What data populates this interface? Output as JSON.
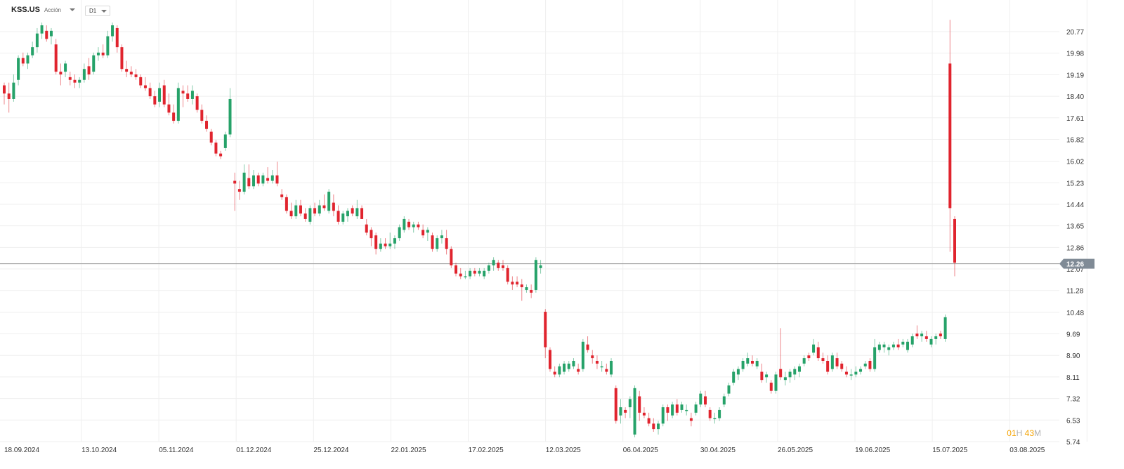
{
  "header": {
    "symbol": "KSS.US",
    "symbol_type": "Acción",
    "timeframe": "D1"
  },
  "countdown": {
    "hours": "01",
    "hours_unit": "H",
    "minutes": "43",
    "minutes_unit": "M"
  },
  "colors": {
    "up": "#26a269",
    "down": "#e0242e",
    "grid": "#efefef",
    "price_line": "#9a9a9a",
    "price_label_bg": "#808b96"
  },
  "chart_data": {
    "type": "candlestick",
    "symbol": "KSS.US",
    "timeframe": "D1",
    "grid": true,
    "y_range": [
      5.74,
      21.2
    ],
    "y_ticks": [
      5.74,
      6.53,
      7.32,
      8.11,
      8.9,
      9.69,
      10.48,
      11.28,
      12.07,
      12.86,
      13.65,
      14.44,
      15.23,
      16.02,
      16.82,
      17.61,
      18.4,
      19.19,
      19.98,
      20.77
    ],
    "y_tick_labels": [
      "5.74",
      "6.53",
      "7.32",
      "8.11",
      "8.90",
      "9.69",
      "10.48",
      "11.28",
      "12.07",
      "12.86",
      "13.65",
      "14.44",
      "15.23",
      "16.02",
      "16.82",
      "17.61",
      "18.40",
      "19.19",
      "19.98",
      "20.77"
    ],
    "x_date_ticks": [
      "18.09.2024",
      "13.10.2024",
      "05.11.2024",
      "01.12.2024",
      "25.12.2024",
      "22.01.2025",
      "17.02.2025",
      "12.03.2025",
      "06.04.2025",
      "30.04.2025",
      "26.05.2025",
      "19.06.2025",
      "15.07.2025",
      "03.08.2025"
    ],
    "current_price": 12.26,
    "current_price_label": "12.26",
    "candles": [
      [
        18.8,
        18.9,
        18.1,
        18.5
      ],
      [
        18.5,
        18.9,
        17.8,
        18.3
      ],
      [
        18.3,
        19.2,
        18.2,
        18.9
      ],
      [
        19.0,
        19.9,
        18.8,
        19.8
      ],
      [
        19.8,
        20.0,
        19.5,
        19.6
      ],
      [
        19.6,
        20.0,
        19.4,
        19.9
      ],
      [
        19.9,
        20.4,
        19.8,
        20.2
      ],
      [
        20.2,
        20.9,
        20.0,
        20.7
      ],
      [
        20.7,
        21.1,
        20.5,
        21.0
      ],
      [
        20.8,
        21.0,
        20.4,
        20.5
      ],
      [
        20.6,
        20.9,
        20.3,
        20.8
      ],
      [
        20.3,
        20.5,
        19.2,
        19.3
      ],
      [
        19.3,
        19.6,
        18.8,
        19.2
      ],
      [
        19.3,
        19.7,
        19.1,
        19.6
      ],
      [
        19.1,
        19.3,
        18.8,
        19.0
      ],
      [
        19.0,
        19.2,
        18.7,
        18.9
      ],
      [
        18.9,
        19.1,
        18.7,
        19.0
      ],
      [
        19.0,
        19.6,
        18.9,
        19.4
      ],
      [
        19.5,
        19.8,
        19.0,
        19.2
      ],
      [
        19.3,
        20.0,
        19.2,
        19.9
      ],
      [
        19.9,
        20.2,
        19.7,
        20.0
      ],
      [
        20.0,
        20.3,
        19.8,
        19.9
      ],
      [
        19.9,
        20.8,
        19.8,
        20.6
      ],
      [
        20.6,
        21.1,
        20.4,
        21.0
      ],
      [
        20.9,
        21.0,
        20.0,
        20.2
      ],
      [
        20.2,
        20.3,
        19.3,
        19.4
      ],
      [
        19.4,
        19.7,
        19.1,
        19.3
      ],
      [
        19.3,
        19.5,
        19.1,
        19.2
      ],
      [
        19.2,
        19.4,
        19.0,
        19.1
      ],
      [
        19.1,
        19.2,
        18.7,
        18.8
      ],
      [
        18.8,
        19.1,
        18.6,
        18.7
      ],
      [
        18.7,
        18.9,
        18.3,
        18.4
      ],
      [
        18.4,
        18.6,
        18.0,
        18.1
      ],
      [
        18.2,
        18.9,
        18.0,
        18.7
      ],
      [
        18.8,
        19.0,
        18.0,
        18.1
      ],
      [
        18.1,
        18.5,
        17.7,
        17.8
      ],
      [
        17.8,
        18.1,
        17.4,
        17.5
      ],
      [
        17.5,
        18.9,
        17.4,
        18.7
      ],
      [
        18.6,
        18.8,
        18.0,
        18.5
      ],
      [
        18.5,
        18.8,
        18.2,
        18.3
      ],
      [
        18.3,
        18.8,
        18.1,
        18.6
      ],
      [
        18.4,
        18.5,
        17.8,
        17.9
      ],
      [
        17.9,
        18.1,
        17.4,
        17.5
      ],
      [
        17.5,
        17.7,
        17.1,
        17.2
      ],
      [
        17.1,
        17.2,
        16.6,
        16.7
      ],
      [
        16.7,
        16.8,
        16.2,
        16.3
      ],
      [
        16.3,
        16.4,
        16.1,
        16.2
      ],
      [
        16.5,
        17.1,
        16.4,
        17.0
      ],
      [
        17.0,
        18.7,
        16.9,
        18.3
      ],
      [
        15.3,
        15.6,
        14.2,
        15.2
      ],
      [
        15.0,
        15.3,
        14.6,
        14.9
      ],
      [
        14.9,
        15.9,
        14.8,
        15.6
      ],
      [
        15.4,
        15.9,
        15.0,
        15.1
      ],
      [
        15.1,
        15.7,
        15.0,
        15.5
      ],
      [
        15.5,
        15.6,
        15.1,
        15.2
      ],
      [
        15.2,
        15.6,
        15.1,
        15.5
      ],
      [
        15.4,
        15.8,
        15.2,
        15.3
      ],
      [
        15.3,
        15.7,
        15.2,
        15.5
      ],
      [
        15.5,
        16.0,
        15.1,
        15.2
      ],
      [
        14.8,
        15.0,
        14.6,
        14.7
      ],
      [
        14.7,
        14.8,
        14.1,
        14.2
      ],
      [
        14.2,
        14.5,
        13.9,
        14.0
      ],
      [
        14.0,
        14.6,
        13.9,
        14.4
      ],
      [
        14.4,
        14.6,
        14.0,
        14.1
      ],
      [
        14.1,
        14.3,
        13.8,
        13.9
      ],
      [
        13.8,
        14.4,
        13.7,
        14.3
      ],
      [
        14.3,
        14.5,
        14.0,
        14.1
      ],
      [
        14.1,
        14.6,
        14.0,
        14.4
      ],
      [
        14.4,
        14.8,
        14.2,
        14.3
      ],
      [
        14.2,
        15.0,
        14.1,
        14.9
      ],
      [
        14.5,
        14.8,
        14.0,
        14.2
      ],
      [
        14.2,
        14.4,
        13.7,
        13.8
      ],
      [
        13.8,
        14.2,
        13.7,
        14.1
      ],
      [
        14.0,
        14.3,
        13.8,
        14.2
      ],
      [
        14.3,
        14.4,
        14.0,
        14.1
      ],
      [
        14.0,
        14.6,
        13.9,
        14.3
      ],
      [
        14.3,
        14.4,
        13.9,
        13.9
      ],
      [
        13.7,
        13.9,
        13.3,
        13.4
      ],
      [
        13.5,
        13.6,
        12.9,
        13.2
      ],
      [
        13.3,
        13.4,
        12.6,
        12.8
      ],
      [
        12.8,
        13.2,
        12.7,
        13.0
      ],
      [
        13.0,
        13.2,
        12.8,
        12.9
      ],
      [
        12.9,
        13.4,
        12.8,
        13.0
      ],
      [
        13.0,
        13.3,
        12.8,
        13.2
      ],
      [
        13.2,
        13.7,
        13.1,
        13.6
      ],
      [
        13.5,
        14.0,
        13.4,
        13.9
      ],
      [
        13.8,
        13.9,
        13.5,
        13.6
      ],
      [
        13.6,
        13.8,
        13.4,
        13.7
      ],
      [
        13.7,
        13.8,
        13.5,
        13.6
      ],
      [
        13.5,
        13.7,
        13.2,
        13.3
      ],
      [
        13.4,
        13.6,
        13.1,
        13.5
      ],
      [
        13.3,
        13.4,
        12.7,
        12.8
      ],
      [
        12.8,
        13.3,
        12.7,
        13.2
      ],
      [
        13.2,
        13.5,
        13.0,
        13.3
      ],
      [
        13.2,
        13.5,
        12.6,
        12.8
      ],
      [
        12.8,
        12.9,
        12.1,
        12.2
      ],
      [
        12.2,
        12.3,
        11.8,
        11.9
      ],
      [
        11.9,
        12.1,
        11.7,
        11.8
      ],
      [
        11.8,
        12.0,
        11.7,
        11.8
      ],
      [
        11.8,
        12.1,
        11.7,
        12.0
      ],
      [
        12.0,
        12.1,
        11.8,
        11.9
      ],
      [
        11.9,
        12.1,
        11.8,
        12.0
      ],
      [
        11.8,
        12.1,
        11.7,
        12.0
      ],
      [
        12.0,
        12.3,
        11.9,
        12.2
      ],
      [
        12.2,
        12.5,
        12.0,
        12.4
      ],
      [
        12.3,
        12.4,
        12.0,
        12.1
      ],
      [
        12.2,
        12.4,
        12.0,
        12.1
      ],
      [
        12.1,
        12.2,
        11.5,
        11.6
      ],
      [
        11.6,
        11.8,
        11.3,
        11.5
      ],
      [
        11.6,
        11.8,
        11.4,
        11.5
      ],
      [
        11.5,
        11.7,
        10.9,
        11.4
      ],
      [
        11.3,
        11.5,
        11.2,
        11.4
      ],
      [
        11.3,
        11.5,
        11.0,
        11.2
      ],
      [
        11.3,
        12.5,
        11.2,
        12.4
      ],
      [
        12.1,
        12.4,
        11.9,
        12.2
      ],
      [
        10.5,
        10.6,
        8.8,
        9.2
      ],
      [
        9.1,
        9.2,
        8.3,
        8.4
      ],
      [
        8.3,
        8.5,
        8.1,
        8.2
      ],
      [
        8.2,
        8.6,
        8.1,
        8.5
      ],
      [
        8.3,
        8.7,
        8.2,
        8.6
      ],
      [
        8.4,
        8.7,
        8.3,
        8.6
      ],
      [
        8.5,
        8.8,
        8.4,
        8.7
      ],
      [
        8.4,
        8.6,
        8.2,
        8.3
      ],
      [
        8.4,
        9.5,
        8.3,
        9.4
      ],
      [
        9.3,
        9.6,
        9.0,
        9.1
      ],
      [
        8.9,
        9.1,
        8.6,
        8.8
      ],
      [
        8.7,
        8.9,
        8.4,
        8.6
      ],
      [
        8.5,
        8.7,
        8.3,
        8.5
      ],
      [
        8.4,
        8.6,
        8.2,
        8.3
      ],
      [
        8.2,
        8.8,
        8.1,
        8.7
      ],
      [
        7.7,
        7.8,
        6.4,
        6.5
      ],
      [
        6.7,
        7.3,
        6.4,
        7.0
      ],
      [
        6.9,
        7.0,
        6.6,
        6.8
      ],
      [
        7.0,
        7.4,
        6.6,
        7.3
      ],
      [
        6.0,
        7.8,
        5.9,
        7.7
      ],
      [
        7.4,
        7.6,
        6.5,
        6.8
      ],
      [
        6.8,
        7.0,
        6.6,
        6.7
      ],
      [
        6.6,
        6.8,
        6.3,
        6.4
      ],
      [
        6.4,
        6.6,
        6.1,
        6.2
      ],
      [
        6.2,
        6.5,
        6.0,
        6.4
      ],
      [
        6.4,
        7.1,
        6.3,
        7.0
      ],
      [
        7.0,
        7.1,
        6.5,
        6.8
      ],
      [
        6.7,
        7.2,
        6.6,
        7.1
      ],
      [
        7.1,
        7.3,
        6.7,
        6.8
      ],
      [
        6.9,
        7.2,
        6.8,
        7.1
      ],
      [
        6.9,
        7.1,
        6.7,
        6.9
      ],
      [
        6.6,
        6.8,
        6.3,
        6.5
      ],
      [
        6.8,
        7.2,
        6.7,
        7.1
      ],
      [
        7.1,
        7.6,
        7.0,
        7.5
      ],
      [
        7.4,
        7.6,
        7.0,
        7.1
      ],
      [
        6.9,
        7.0,
        6.5,
        6.6
      ],
      [
        6.6,
        6.8,
        6.4,
        6.6
      ],
      [
        6.6,
        7.0,
        6.5,
        6.9
      ],
      [
        7.1,
        7.5,
        7.0,
        7.4
      ],
      [
        7.5,
        7.9,
        7.4,
        7.8
      ],
      [
        7.9,
        8.4,
        7.8,
        8.3
      ],
      [
        8.2,
        8.5,
        8.0,
        8.4
      ],
      [
        8.4,
        8.8,
        8.3,
        8.7
      ],
      [
        8.6,
        9.0,
        8.5,
        8.8
      ],
      [
        8.7,
        8.9,
        8.5,
        8.6
      ],
      [
        8.5,
        8.8,
        8.4,
        8.7
      ],
      [
        8.3,
        8.6,
        7.9,
        8.0
      ],
      [
        8.1,
        8.3,
        7.9,
        8.2
      ],
      [
        7.9,
        8.0,
        7.5,
        7.6
      ],
      [
        7.6,
        8.3,
        7.5,
        8.2
      ],
      [
        8.4,
        9.9,
        8.0,
        8.1
      ],
      [
        8.0,
        8.3,
        7.8,
        8.1
      ],
      [
        8.1,
        8.4,
        7.9,
        8.3
      ],
      [
        8.2,
        8.5,
        8.0,
        8.4
      ],
      [
        8.3,
        8.6,
        8.1,
        8.5
      ],
      [
        8.6,
        8.9,
        8.5,
        8.8
      ],
      [
        8.9,
        9.0,
        8.7,
        8.8
      ],
      [
        9.0,
        9.5,
        8.9,
        9.3
      ],
      [
        9.2,
        9.4,
        8.7,
        8.8
      ],
      [
        8.8,
        9.0,
        8.6,
        8.7
      ],
      [
        8.7,
        8.9,
        8.2,
        8.3
      ],
      [
        8.4,
        9.0,
        8.3,
        8.9
      ],
      [
        8.8,
        9.0,
        8.4,
        8.5
      ],
      [
        8.6,
        8.7,
        8.3,
        8.4
      ],
      [
        8.3,
        8.5,
        8.1,
        8.2
      ],
      [
        8.2,
        8.4,
        8.0,
        8.2
      ],
      [
        8.2,
        8.5,
        8.1,
        8.3
      ],
      [
        8.3,
        8.5,
        8.2,
        8.4
      ],
      [
        8.5,
        8.7,
        8.4,
        8.6
      ],
      [
        8.7,
        8.8,
        8.3,
        8.4
      ],
      [
        8.4,
        9.5,
        8.3,
        9.2
      ],
      [
        9.1,
        9.4,
        9.0,
        9.3
      ],
      [
        9.2,
        9.4,
        9.0,
        9.3
      ],
      [
        9.1,
        9.3,
        8.9,
        9.2
      ],
      [
        9.2,
        9.4,
        9.1,
        9.3
      ],
      [
        9.3,
        9.5,
        9.1,
        9.2
      ],
      [
        9.3,
        9.5,
        9.2,
        9.4
      ],
      [
        9.1,
        9.5,
        9.0,
        9.4
      ],
      [
        9.3,
        9.7,
        9.2,
        9.6
      ],
      [
        9.7,
        10.0,
        9.5,
        9.6
      ],
      [
        9.6,
        9.8,
        9.4,
        9.7
      ],
      [
        9.6,
        9.8,
        9.4,
        9.5
      ],
      [
        9.3,
        9.6,
        9.2,
        9.5
      ],
      [
        9.5,
        9.7,
        9.3,
        9.6
      ],
      [
        9.7,
        9.8,
        9.5,
        9.6
      ],
      [
        9.5,
        10.4,
        9.4,
        10.3
      ],
      [
        19.6,
        21.2,
        12.7,
        14.3
      ],
      [
        13.9,
        14.0,
        11.8,
        12.3
      ]
    ]
  }
}
